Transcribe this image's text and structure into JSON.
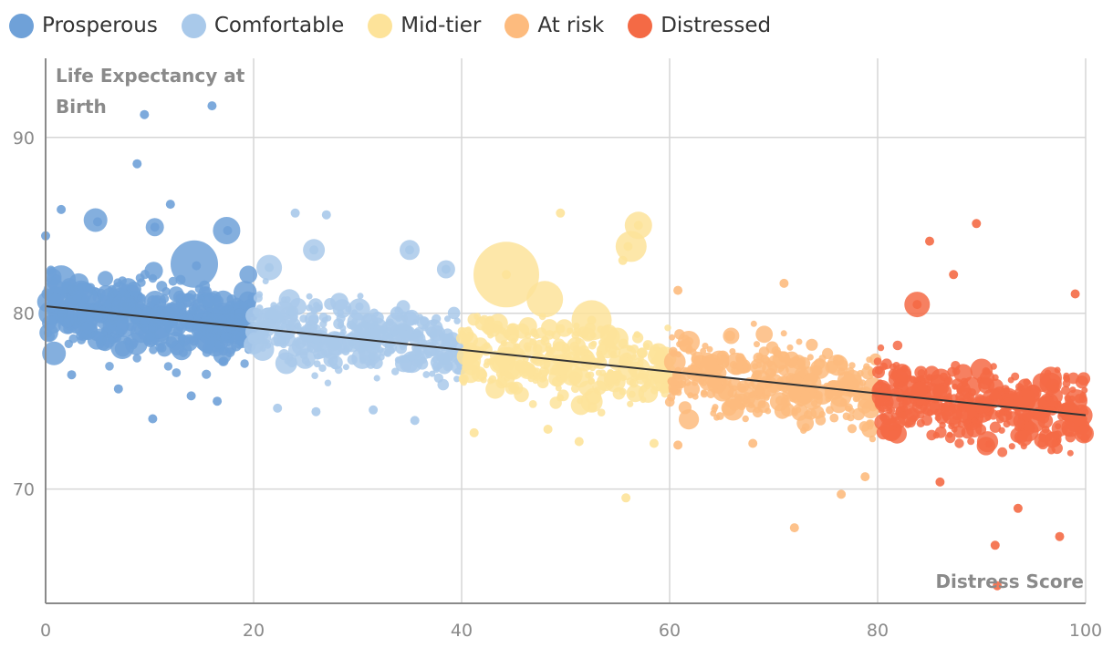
{
  "chart_data": {
    "type": "scatter",
    "title": "",
    "xlabel": "Distress Score",
    "ylabel": "Life Expectancy at Birth",
    "ylabel_lines": [
      "Life Expectancy at",
      "Birth"
    ],
    "xlim": [
      0,
      100
    ],
    "ylim": [
      63.5,
      94.5
    ],
    "x_ticks": [
      0,
      20,
      40,
      60,
      80,
      100
    ],
    "y_ticks": [
      70,
      80,
      90
    ],
    "grid": true,
    "legend_position": "top-left",
    "series": [
      {
        "name": "Prosperous",
        "color": "#6fa1d8",
        "x_range": [
          0,
          20
        ],
        "notable_points": [
          [
            9.5,
            91.3
          ],
          [
            16,
            91.8
          ],
          [
            8.8,
            88.5
          ],
          [
            1.5,
            85.9
          ],
          [
            12,
            86.2
          ],
          [
            5,
            85.2
          ],
          [
            17.5,
            84.7
          ],
          [
            10.5,
            84.9
          ],
          [
            0,
            84.4
          ],
          [
            14.5,
            82.7
          ],
          [
            2.5,
            76.5
          ],
          [
            7,
            75.7
          ],
          [
            10.3,
            74
          ],
          [
            14,
            75.3
          ],
          [
            16.5,
            75
          ]
        ]
      },
      {
        "name": "Comfortable",
        "color": "#a9c9ea",
        "x_range": [
          20,
          40
        ],
        "notable_points": [
          [
            24,
            85.7
          ],
          [
            27,
            85.6
          ],
          [
            25.8,
            83.6
          ],
          [
            35,
            83.6
          ],
          [
            21.5,
            82.6
          ],
          [
            38.5,
            82.5
          ],
          [
            22.3,
            74.6
          ],
          [
            26,
            74.4
          ],
          [
            35.5,
            73.9
          ],
          [
            31.5,
            74.5
          ]
        ]
      },
      {
        "name": "Mid-tier",
        "color": "#fde39a",
        "x_range": [
          40,
          60
        ],
        "notable_points": [
          [
            49.5,
            85.7
          ],
          [
            57,
            85
          ],
          [
            56,
            83.8
          ],
          [
            55.5,
            83
          ],
          [
            44.3,
            82.2
          ],
          [
            52.5,
            79.6
          ],
          [
            55.8,
            69.5
          ],
          [
            41.2,
            73.2
          ],
          [
            48.3,
            73.4
          ],
          [
            51.3,
            72.7
          ],
          [
            58.5,
            72.6
          ]
        ]
      },
      {
        "name": "At risk",
        "color": "#fdbb7e",
        "x_range": [
          60,
          80
        ],
        "notable_points": [
          [
            71,
            81.7
          ],
          [
            60.8,
            81.3
          ],
          [
            72,
            67.8
          ],
          [
            76.5,
            69.7
          ],
          [
            78.8,
            70.7
          ],
          [
            60.8,
            72.5
          ],
          [
            68,
            72.6
          ]
        ]
      },
      {
        "name": "Distressed",
        "color": "#f46a45",
        "x_range": [
          80,
          100
        ],
        "notable_points": [
          [
            89.5,
            85.1
          ],
          [
            85,
            84.1
          ],
          [
            87.3,
            82.2
          ],
          [
            99,
            81.1
          ],
          [
            83.8,
            80.5
          ],
          [
            91.5,
            64.5
          ],
          [
            91.3,
            66.8
          ],
          [
            97.5,
            67.3
          ],
          [
            86,
            70.4
          ],
          [
            93.5,
            68.9
          ]
        ]
      }
    ],
    "trendline": {
      "x": [
        0,
        100
      ],
      "y": [
        80.4,
        74.2
      ],
      "color": "#333333"
    }
  }
}
